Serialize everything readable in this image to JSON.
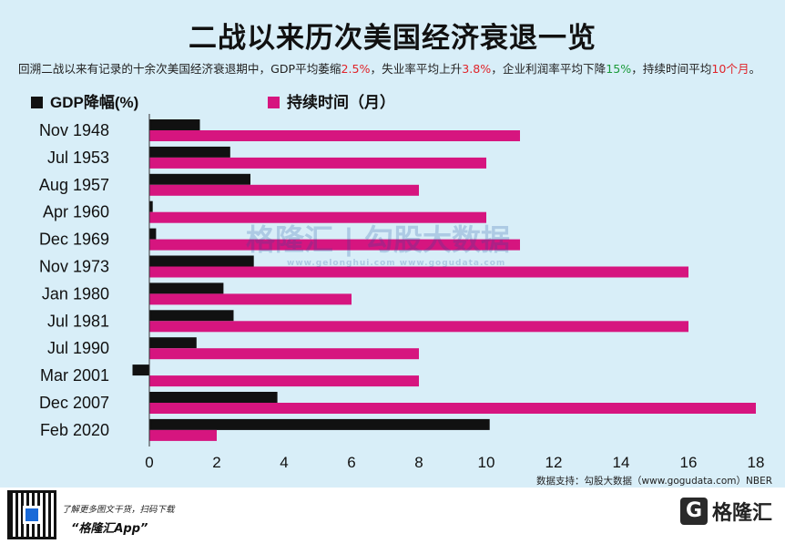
{
  "title": "二战以来历次美国经济衰退一览",
  "subtitle": {
    "part1": "回溯二战以来有记录的十余次美国经济衰退期中，GDP平均萎缩",
    "gdp_avg": "2.5%",
    "part2": "，失业率平均上升",
    "unemp_avg": "3.8%",
    "part3": "，企业利润率平均下降",
    "profit_avg": "15%",
    "part4": "，持续时间平均",
    "duration_avg": "10个月",
    "part5": "。"
  },
  "watermark": {
    "text": "格隆汇 | 勾股大数据",
    "url": "www.gelonghui.com   www.gogudata.com"
  },
  "source": "数据支持：勾股大数据（www.gogudata.com）NBER",
  "footer": {
    "cta_line1": "了解更多图文干货，扫码下载",
    "cta_line2": "“格隆汇App”",
    "brand_icon": "G",
    "brand_name": "格隆汇"
  },
  "colors": {
    "gdp": "#111111",
    "duration": "#d6157f",
    "background": "#d8eef8"
  },
  "chart_data": {
    "type": "bar",
    "orientation": "horizontal",
    "categories": [
      "Nov 1948",
      "Jul 1953",
      "Aug 1957",
      "Apr 1960",
      "Dec 1969",
      "Nov 1973",
      "Jan 1980",
      "Jul 1981",
      "Jul 1990",
      "Mar 2001",
      "Dec 2007",
      "Feb 2020"
    ],
    "series": [
      {
        "name": "GDP降幅(%)",
        "values": [
          1.5,
          2.4,
          3.0,
          0.1,
          0.2,
          3.1,
          2.2,
          2.5,
          1.4,
          -0.5,
          3.8,
          10.1
        ]
      },
      {
        "name": "持续时间（月）",
        "values": [
          11,
          10,
          8,
          10,
          11,
          16,
          6,
          16,
          8,
          8,
          18,
          2
        ]
      }
    ],
    "xlim": [
      -0.5,
      18
    ],
    "xticks": [
      0,
      2,
      4,
      6,
      8,
      10,
      12,
      14,
      16,
      18
    ],
    "legend": "top-left",
    "grid": false
  }
}
